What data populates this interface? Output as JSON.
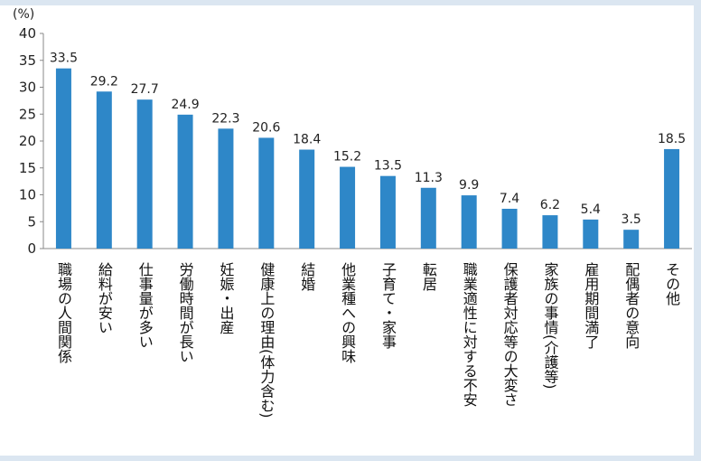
{
  "chart_data": {
    "type": "bar",
    "unit_label": "(%)",
    "title": "",
    "xlabel": "",
    "ylabel": "",
    "ylim": [
      0,
      40
    ],
    "yticks": [
      0,
      5,
      10,
      15,
      20,
      25,
      30,
      35,
      40
    ],
    "grid": false,
    "legend": "none",
    "bar_color": "#2e87c8",
    "categories": [
      "職場の人間関係",
      "給料が安い",
      "仕事量が多い",
      "労働時間が長い",
      "妊娠・出産",
      "健康上の理由(体力含む)",
      "結婚",
      "他業種への興味",
      "子育て・家事",
      "転居",
      "職業適性に対する不安",
      "保護者対応等の大変さ",
      "家族の事情(介護等)",
      "雇用期間満了",
      "配偶者の意向",
      "その他"
    ],
    "values": [
      33.5,
      29.2,
      27.7,
      24.9,
      22.3,
      20.6,
      18.4,
      15.2,
      13.5,
      11.3,
      9.9,
      7.4,
      6.2,
      5.4,
      3.5,
      18.5
    ]
  }
}
